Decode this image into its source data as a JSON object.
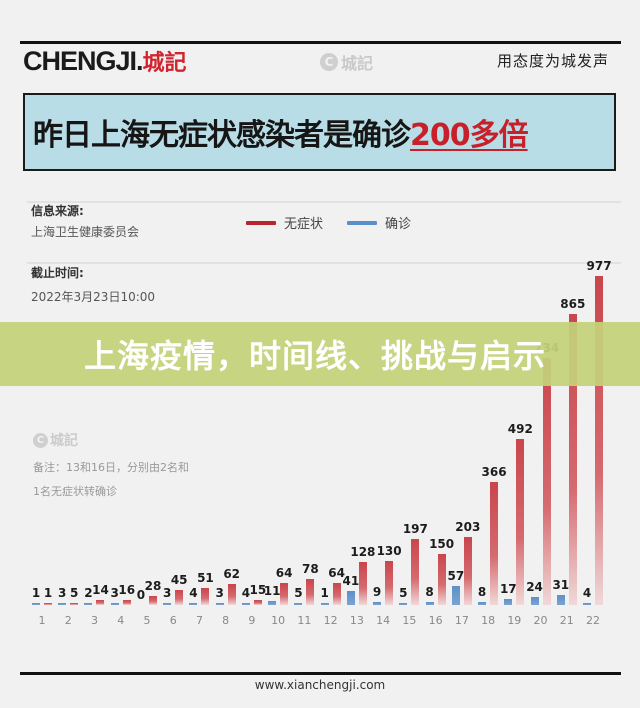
{
  "header": {
    "logo_text_en_1": "CH",
    "logo_text_en_e": "E",
    "logo_text_en_2": "NGJI.",
    "logo_text_cn": "城記",
    "watermark_circle": "C",
    "watermark_text": "城記",
    "slogan": "用态度为城发声"
  },
  "title": {
    "main": "昨日上海无症状感染者是确诊",
    "highlight": "200多倍"
  },
  "info": {
    "source_label": "信息来源:",
    "source_value": "上海卫生健康委员会",
    "cutoff_label": "截止时间:",
    "cutoff_value": "2022年3月23日10:00"
  },
  "legend": [
    {
      "label": "无症状",
      "color": "#b8262d"
    },
    {
      "label": "确诊",
      "color": "#5b8fc9"
    }
  ],
  "banner": {
    "text": "上海疫情，时间线、挑战与启示"
  },
  "notes": {
    "watermark_circle": "C",
    "watermark_text": "城記",
    "line1": "备注：13和16日，分别由2名和",
    "line2": "1名无症状转确诊"
  },
  "footer": {
    "url": "www.xianchengji.com"
  },
  "chart_data": {
    "type": "bar",
    "title": "昨日上海无症状感染者是确诊200多倍",
    "xlabel": "",
    "ylabel": "",
    "categories": [
      "1",
      "2",
      "3",
      "4",
      "5",
      "6",
      "7",
      "8",
      "9",
      "10",
      "11",
      "12",
      "13",
      "14",
      "15",
      "16",
      "17",
      "18",
      "19",
      "20",
      "21",
      "22"
    ],
    "series": [
      {
        "name": "确诊",
        "color": "#5b8fc9",
        "values": [
          1,
          3,
          2,
          3,
          0,
          3,
          4,
          3,
          4,
          11,
          5,
          1,
          41,
          9,
          5,
          8,
          57,
          8,
          17,
          24,
          31,
          4
        ]
      },
      {
        "name": "无症状",
        "color": "#b8262d",
        "values": [
          1,
          5,
          14,
          16,
          28,
          45,
          51,
          62,
          15,
          64,
          78,
          64,
          128,
          130,
          197,
          150,
          203,
          366,
          492,
          734,
          865,
          977
        ]
      }
    ],
    "ylim": [
      0,
      1000
    ],
    "grid": false,
    "legend_position": "top",
    "annotations": [
      "备注：13和16日，分别由2名和1名无症状转确诊"
    ]
  }
}
